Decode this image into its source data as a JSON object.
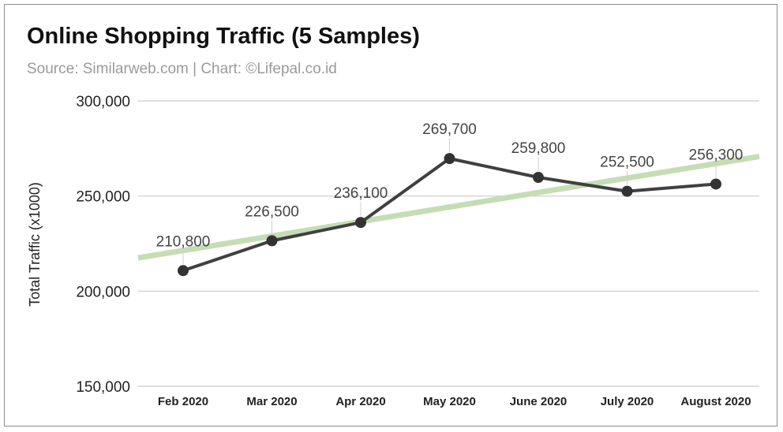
{
  "chart_data": {
    "type": "line",
    "title": "Online Shopping Traffic (5 Samples)",
    "subtitle": "Source: Similarweb.com | Chart: ©Lifepal.co.id",
    "xlabel": "",
    "ylabel": "Total Traffic (x1000)",
    "categories": [
      "Feb 2020",
      "Mar 2020",
      "Apr 2020",
      "May 2020",
      "June 2020",
      "July 2020",
      "August 2020"
    ],
    "series": [
      {
        "values": [
          210800,
          226500,
          236100,
          269700,
          259800,
          252500,
          256300
        ],
        "data_labels": [
          "210,800",
          "226,500",
          "236,100",
          "269,700",
          "259,800",
          "252,500",
          "256,300"
        ],
        "color": "#404040"
      }
    ],
    "trendline": {
      "color": "#c5ddb5",
      "start": 217500,
      "end": 270800
    },
    "ylim": [
      150000,
      300000
    ],
    "yticks": [
      150000,
      200000,
      250000,
      300000
    ],
    "ytick_labels": [
      "150,000",
      "200,000",
      "250,000",
      "300,000"
    ],
    "grid": true,
    "legend": "none",
    "gridline_color": "#cccccc"
  }
}
